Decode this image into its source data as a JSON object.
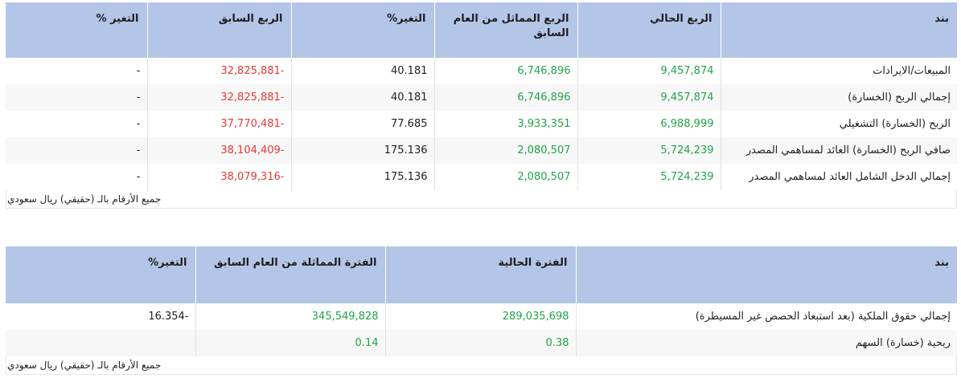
{
  "quarterly": {
    "headers": [
      "التغير %",
      "الربع السابق",
      "التغير%",
      "الربع المماثل من العام السابق",
      "الربع الحالي",
      "بند"
    ],
    "rows": [
      {
        "change_pct": "-",
        "prev_quarter": "32,825,881-",
        "change": "40.181",
        "same_quarter_last_year": "6,746,896",
        "current_quarter": "9,457,874",
        "item": "المبيعات/الايرادات"
      },
      {
        "change_pct": "-",
        "prev_quarter": "32,825,881-",
        "change": "40.181",
        "same_quarter_last_year": "6,746,896",
        "current_quarter": "9,457,874",
        "item": "إجمالي الربح (الخسارة)"
      },
      {
        "change_pct": "-",
        "prev_quarter": "37,770,481-",
        "change": "77.685",
        "same_quarter_last_year": "3,933,351",
        "current_quarter": "6,988,999",
        "item": "الربح (الخسارة) التشغيلي"
      },
      {
        "change_pct": "-",
        "prev_quarter": "38,104,409-",
        "change": "175.136",
        "same_quarter_last_year": "2,080,507",
        "current_quarter": "5,724,239",
        "item": "صافي الربح (الخسارة) العائد لمساهمي المصدر"
      },
      {
        "change_pct": "-",
        "prev_quarter": "38,079,316-",
        "change": "175.136",
        "same_quarter_last_year": "2,080,507",
        "current_quarter": "5,724,239",
        "item": "إجمالي الدخل الشامل العائد لمساهمي المصدر"
      }
    ],
    "note": "جميع الأرقام بالـ (حقيقي) ريال سعودي"
  },
  "period": {
    "headers": [
      "التغير%",
      "الفترة المماثلة من العام السابق",
      "الفترة الحالية",
      "بند"
    ],
    "rows": [
      {
        "change": "16.354-",
        "same_period_last_year": "345,549,828",
        "current_period": "289,035,698",
        "item": "إجمالي حقوق الملكية (بعد استبعاد الحصص غير المسيطرة)"
      },
      {
        "change": "",
        "same_period_last_year": "0.14",
        "current_period": "0.38",
        "item": "ربحية (خسارة) السهم"
      }
    ],
    "note": "جميع الأرقام بالـ (حقيقي) ريال سعودي"
  },
  "colors": {
    "header_bg": "#b4c6e7",
    "positive": "#21a34a",
    "negative": "#e53935",
    "row_alt": "#f7f7f7"
  }
}
